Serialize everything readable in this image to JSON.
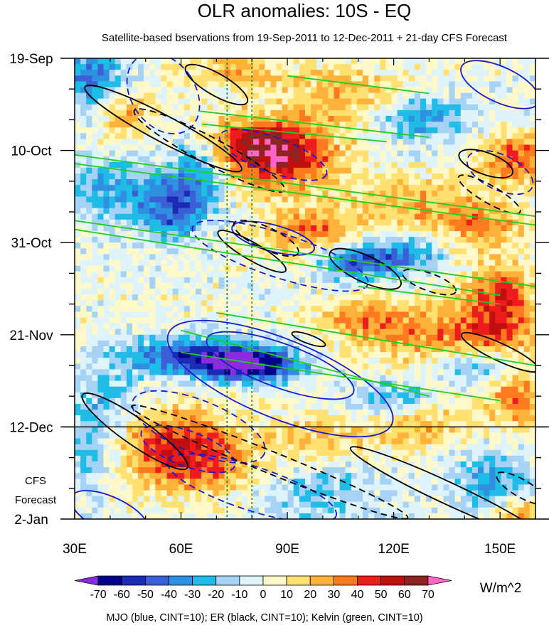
{
  "chart_data": {
    "type": "heatmap",
    "title": "OLR anomalies: 10S - EQ",
    "subtitle": "Satellite-based bservations from 19-Sep-2011 to 12-Dec-2011 + 21-day CFS Forecast",
    "x_ticks": [
      {
        "value": 30,
        "label": "30E"
      },
      {
        "value": 60,
        "label": "60E"
      },
      {
        "value": 90,
        "label": "90E"
      },
      {
        "value": 120,
        "label": "120E"
      },
      {
        "value": 150,
        "label": "150E"
      }
    ],
    "xlim": [
      30,
      160
    ],
    "y_ticks": [
      {
        "value": 0,
        "label": "19-Sep"
      },
      {
        "value": 21,
        "label": "10-Oct"
      },
      {
        "value": 42,
        "label": "31-Oct"
      },
      {
        "value": 63,
        "label": "21-Nov"
      },
      {
        "value": 84,
        "label": "12-Dec"
      },
      {
        "value": 105,
        "label": "2-Jan"
      }
    ],
    "ylim": [
      0,
      105
    ],
    "y_units": "days since 19-Sep-2011",
    "forecast_start_day": 84,
    "forecast_label_line1": "CFS",
    "forecast_label_line2": "Forecast",
    "reference_longitudes": [
      73,
      80
    ],
    "colorbar": {
      "levels": [
        -70,
        -60,
        -50,
        -40,
        -30,
        -20,
        -10,
        0,
        10,
        20,
        30,
        40,
        50,
        60,
        70
      ],
      "colors": [
        "#8a2be2",
        "#00008b",
        "#1c2bb4",
        "#3a5fd6",
        "#2f8fe0",
        "#1fbce8",
        "#a6d3f5",
        "#dff3fb",
        "#fff8c8",
        "#ffe070",
        "#ffb23a",
        "#ff7a1f",
        "#ee1c1c",
        "#c10f0f",
        "#8e2323",
        "#ff66c8"
      ],
      "units": "W/m^2"
    },
    "caption": "MJO (blue, CINT=10); ER (black, CINT=10); Kelvin (green, CINT=10)",
    "contour_colors": {
      "mjo": "#1a1acd",
      "er": "#000000",
      "kelvin": "#22cc22"
    },
    "anomaly_centers": [
      {
        "lon": 88,
        "day": 23,
        "value": 50,
        "sx": 12,
        "sy": 5
      },
      {
        "lon": 80,
        "day": 19,
        "value": 35,
        "sx": 10,
        "sy": 4
      },
      {
        "lon": 155,
        "day": 23,
        "value": 40,
        "sx": 8,
        "sy": 4
      },
      {
        "lon": 64,
        "day": 68,
        "value": -50,
        "sx": 14,
        "sy": 3
      },
      {
        "lon": 80,
        "day": 70,
        "value": -65,
        "sx": 10,
        "sy": 2.5
      },
      {
        "lon": 63,
        "day": 92,
        "value": 40,
        "sx": 14,
        "sy": 5
      },
      {
        "lon": 58,
        "day": 85,
        "value": 30,
        "sx": 10,
        "sy": 5
      },
      {
        "lon": 108,
        "day": 46,
        "value": -45,
        "sx": 7,
        "sy": 3
      },
      {
        "lon": 122,
        "day": 45,
        "value": -35,
        "sx": 8,
        "sy": 3
      },
      {
        "lon": 98,
        "day": 40,
        "value": 35,
        "sx": 10,
        "sy": 4
      },
      {
        "lon": 130,
        "day": 63,
        "value": 30,
        "sx": 14,
        "sy": 5
      },
      {
        "lon": 150,
        "day": 60,
        "value": 35,
        "sx": 8,
        "sy": 6
      },
      {
        "lon": 150,
        "day": 52,
        "value": 25,
        "sx": 6,
        "sy": 4
      },
      {
        "lon": 57,
        "day": 35,
        "value": -40,
        "sx": 6,
        "sy": 5
      },
      {
        "lon": 65,
        "day": 26,
        "value": -35,
        "sx": 6,
        "sy": 6
      },
      {
        "lon": 40,
        "day": 30,
        "value": -30,
        "sx": 10,
        "sy": 5
      },
      {
        "lon": 35,
        "day": 5,
        "value": -40,
        "sx": 7,
        "sy": 5
      },
      {
        "lon": 44,
        "day": 12,
        "value": 25,
        "sx": 6,
        "sy": 4
      },
      {
        "lon": 105,
        "day": 9,
        "value": 25,
        "sx": 12,
        "sy": 5
      },
      {
        "lon": 75,
        "day": 3,
        "value": 25,
        "sx": 8,
        "sy": 3
      },
      {
        "lon": 128,
        "day": 14,
        "value": -30,
        "sx": 10,
        "sy": 4
      },
      {
        "lon": 125,
        "day": 33,
        "value": 25,
        "sx": 12,
        "sy": 4
      },
      {
        "lon": 145,
        "day": 38,
        "value": 30,
        "sx": 8,
        "sy": 4
      },
      {
        "lon": 100,
        "day": 99,
        "value": -20,
        "sx": 12,
        "sy": 6
      },
      {
        "lon": 148,
        "day": 97,
        "value": -30,
        "sx": 8,
        "sy": 5
      },
      {
        "lon": 127,
        "day": 83,
        "value": 25,
        "sx": 10,
        "sy": 4
      },
      {
        "lon": 120,
        "day": 78,
        "value": -30,
        "sx": 8,
        "sy": 3
      },
      {
        "lon": 155,
        "day": 78,
        "value": 35,
        "sx": 6,
        "sy": 4
      },
      {
        "lon": 100,
        "day": 87,
        "value": 20,
        "sx": 10,
        "sy": 4
      },
      {
        "lon": 40,
        "day": 78,
        "value": -20,
        "sx": 8,
        "sy": 5
      },
      {
        "lon": 35,
        "day": 90,
        "value": -25,
        "sx": 5,
        "sy": 6
      },
      {
        "lon": 155,
        "day": 104,
        "value": 30,
        "sx": 6,
        "sy": 3
      },
      {
        "lon": 110,
        "day": 59,
        "value": 25,
        "sx": 8,
        "sy": 3
      },
      {
        "lon": 142,
        "day": 70,
        "value": -30,
        "sx": 8,
        "sy": 3
      }
    ],
    "mjo_contours": [
      {
        "lon": 55,
        "day": 8,
        "rlon": 9,
        "rday": 10,
        "angle": -35,
        "dashed": true
      },
      {
        "lon": 150,
        "day": 6,
        "rlon": 12,
        "rday": 4,
        "angle": 25,
        "dashed": false
      },
      {
        "lon": 86,
        "day": 22,
        "rlon": 16,
        "rday": 4,
        "angle": 20,
        "dashed": true
      },
      {
        "lon": 150,
        "day": 26,
        "rlon": 10,
        "rday": 4,
        "angle": 25,
        "dashed": true
      },
      {
        "lon": 88,
        "day": 45,
        "rlon": 26,
        "rday": 5,
        "angle": 18,
        "dashed": true
      },
      {
        "lon": 86,
        "day": 41,
        "rlon": 12,
        "rday": 3,
        "angle": 15,
        "dashed": false
      },
      {
        "lon": 88,
        "day": 73,
        "rlon": 34,
        "rday": 9,
        "angle": 22,
        "dashed": false
      },
      {
        "lon": 88,
        "day": 70,
        "rlon": 22,
        "rday": 5,
        "angle": 20,
        "dashed": false
      },
      {
        "lon": 65,
        "day": 84,
        "rlon": 20,
        "rday": 6,
        "angle": 22,
        "dashed": true
      },
      {
        "lon": 80,
        "day": 98,
        "rlon": 25,
        "rday": 5,
        "angle": 18,
        "dashed": true
      },
      {
        "lon": 62,
        "day": 89,
        "rlon": 14,
        "rday": 4,
        "angle": 20,
        "dashed": true
      },
      {
        "lon": 40,
        "day": 104,
        "rlon": 12,
        "rday": 4,
        "angle": 25,
        "dashed": false
      }
    ],
    "er_contours": [
      {
        "lon": 70,
        "day": 6,
        "rlon": 10,
        "rday": 2.5,
        "angle": 30,
        "dashed": false
      },
      {
        "lon": 55,
        "day": 16,
        "rlon": 25,
        "rday": 3,
        "angle": 28,
        "dashed": false
      },
      {
        "lon": 68,
        "day": 21,
        "rlon": 24,
        "rday": 3,
        "angle": 28,
        "dashed": true
      },
      {
        "lon": 80,
        "day": 44,
        "rlon": 11,
        "rday": 2,
        "angle": 30,
        "dashed": false
      },
      {
        "lon": 84,
        "day": 41,
        "rlon": 10,
        "rday": 2.5,
        "angle": 25,
        "dashed": true
      },
      {
        "lon": 112,
        "day": 48,
        "rlon": 11,
        "rday": 3,
        "angle": 25,
        "dashed": false
      },
      {
        "lon": 130,
        "day": 51,
        "rlon": 8,
        "rday": 2,
        "angle": 20,
        "dashed": true
      },
      {
        "lon": 147,
        "day": 31,
        "rlon": 10,
        "rday": 2,
        "angle": 30,
        "dashed": true
      },
      {
        "lon": 146,
        "day": 24,
        "rlon": 8,
        "rday": 2.5,
        "angle": 20,
        "dashed": false
      },
      {
        "lon": 150,
        "day": 67,
        "rlon": 12,
        "rday": 2,
        "angle": 25,
        "dashed": false
      },
      {
        "lon": 47,
        "day": 85,
        "rlon": 18,
        "rday": 3,
        "angle": 35,
        "dashed": false
      },
      {
        "lon": 85,
        "day": 92,
        "rlon": 42,
        "rday": 2.5,
        "angle": 22,
        "dashed": true
      },
      {
        "lon": 135,
        "day": 99,
        "rlon": 30,
        "rday": 2.5,
        "angle": 25,
        "dashed": false
      },
      {
        "lon": 156,
        "day": 98,
        "rlon": 8,
        "rday": 2,
        "angle": 30,
        "dashed": true
      },
      {
        "lon": 96,
        "day": 64,
        "rlon": 5,
        "rday": 1,
        "angle": 20,
        "dashed": false
      }
    ],
    "kelvin_lines": [
      {
        "lon1": 30,
        "day1": 22,
        "lon2": 160,
        "day2": 36
      },
      {
        "lon1": 30,
        "day1": 24,
        "lon2": 160,
        "day2": 38
      },
      {
        "lon1": 30,
        "day1": 37,
        "lon2": 160,
        "day2": 52
      },
      {
        "lon1": 30,
        "day1": 39,
        "lon2": 150,
        "day2": 54
      },
      {
        "lon1": 65,
        "day1": 12,
        "lon2": 130,
        "day2": 18
      },
      {
        "lon1": 66,
        "day1": 15,
        "lon2": 118,
        "day2": 19
      },
      {
        "lon1": 90,
        "day1": 4,
        "lon2": 130,
        "day2": 8
      },
      {
        "lon1": 70,
        "day1": 58,
        "lon2": 160,
        "day2": 70
      },
      {
        "lon1": 60,
        "day1": 62,
        "lon2": 130,
        "day2": 77
      },
      {
        "lon1": 60,
        "day1": 67,
        "lon2": 150,
        "day2": 78
      },
      {
        "lon1": 110,
        "day1": 52,
        "lon2": 150,
        "day2": 56
      }
    ]
  }
}
